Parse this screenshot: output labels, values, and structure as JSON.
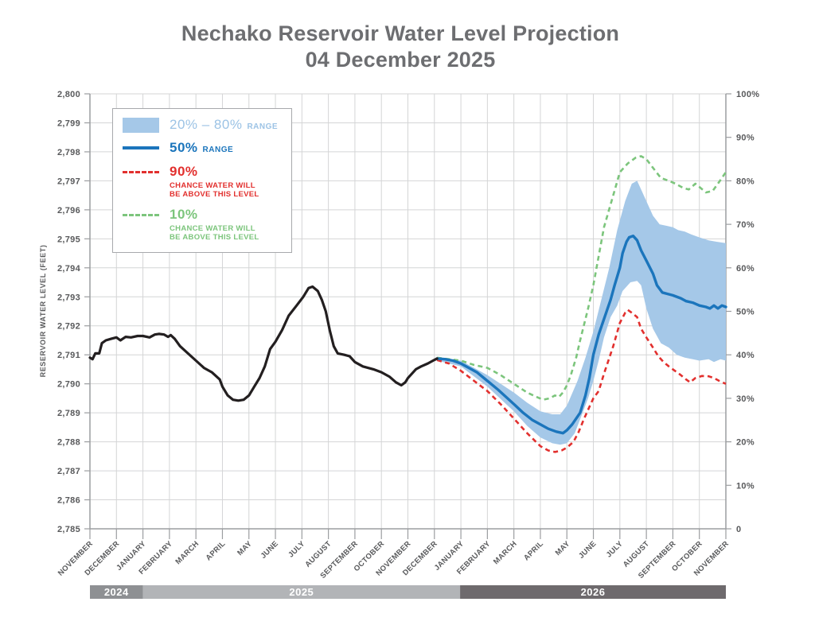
{
  "header": {
    "title_line1": "Nechako Reservoir Water Level Projection",
    "title_line2": "04 December 2025"
  },
  "legend": {
    "items": [
      {
        "key": "band-swatch",
        "label": "20% – 80%",
        "sub": "RANGE"
      },
      {
        "key": "median-line",
        "label": "50%",
        "sub": "RANGE"
      },
      {
        "key": "p90-dash",
        "label": "90%",
        "desc1": "CHANCE WATER WILL",
        "desc2": "BE ABOVE THIS LEVEL"
      },
      {
        "key": "p10-dash",
        "label": "10%",
        "desc1": "CHANCE WATER WILL",
        "desc2": "BE ABOVE THIS LEVEL"
      }
    ]
  },
  "chart_data": {
    "type": "line",
    "title": "Nechako Reservoir Water Level Projection",
    "subtitle": "04 December 2025",
    "grid": true,
    "y_left": {
      "label": "RESERVOIR WATER LEVEL (FEET)",
      "min": 2785,
      "max": 2800,
      "step": 1
    },
    "y_right": {
      "min": 0,
      "max": 100,
      "step": 10,
      "suffix": "%",
      "zero_label": "0"
    },
    "x_months": [
      "NOVEMBER",
      "DECEMBER",
      "JANUARY",
      "FEBRUARY",
      "MARCH",
      "APRIL",
      "MAY",
      "JUNE",
      "JULY",
      "AUGUST",
      "SEPTEMBER",
      "OCTOBER",
      "NOVEMBER",
      "DECEMBER",
      "JANUARY",
      "FEBRUARY",
      "MARCH",
      "APRIL",
      "MAY",
      "JUNE",
      "JULY",
      "AUGUST",
      "SEPTEMBER",
      "OCTOBER",
      "NOVEMBER"
    ],
    "year_bands": [
      {
        "label": "2024",
        "from": 0,
        "to": 2.0,
        "color": "#8e9093"
      },
      {
        "label": "2025",
        "from": 2.0,
        "to": 13.97,
        "color": "#b2b4b7"
      },
      {
        "label": "2026",
        "from": 13.97,
        "to": 24.0,
        "color": "#6e6a6d"
      }
    ],
    "colors": {
      "historical": "#231f20",
      "median": "#1b75bc",
      "band": "#a5c8e8",
      "p90": "#e2302e",
      "p10": "#7cc57c",
      "grid": "#d4d5d6",
      "axis": "#9b9da0",
      "tick_text": "#58595b",
      "title_text": "#6d6e71"
    },
    "series": {
      "historical": [
        [
          0,
          2790.9
        ],
        [
          0.1,
          2790.85
        ],
        [
          0.2,
          2791.05
        ],
        [
          0.35,
          2791.05
        ],
        [
          0.45,
          2791.4
        ],
        [
          0.6,
          2791.5
        ],
        [
          0.8,
          2791.55
        ],
        [
          1.0,
          2791.6
        ],
        [
          1.15,
          2791.5
        ],
        [
          1.35,
          2791.62
        ],
        [
          1.55,
          2791.6
        ],
        [
          1.8,
          2791.65
        ],
        [
          2.0,
          2791.65
        ],
        [
          2.25,
          2791.6
        ],
        [
          2.45,
          2791.7
        ],
        [
          2.6,
          2791.72
        ],
        [
          2.8,
          2791.7
        ],
        [
          2.95,
          2791.62
        ],
        [
          3.05,
          2791.68
        ],
        [
          3.2,
          2791.55
        ],
        [
          3.4,
          2791.3
        ],
        [
          3.7,
          2791.05
        ],
        [
          4.0,
          2790.8
        ],
        [
          4.3,
          2790.55
        ],
        [
          4.6,
          2790.4
        ],
        [
          4.9,
          2790.15
        ],
        [
          5.0,
          2789.9
        ],
        [
          5.2,
          2789.6
        ],
        [
          5.4,
          2789.45
        ],
        [
          5.6,
          2789.42
        ],
        [
          5.8,
          2789.45
        ],
        [
          6.0,
          2789.6
        ],
        [
          6.2,
          2789.9
        ],
        [
          6.4,
          2790.2
        ],
        [
          6.6,
          2790.6
        ],
        [
          6.8,
          2791.2
        ],
        [
          7.0,
          2791.45
        ],
        [
          7.25,
          2791.85
        ],
        [
          7.5,
          2792.35
        ],
        [
          7.8,
          2792.7
        ],
        [
          8.05,
          2793.0
        ],
        [
          8.25,
          2793.3
        ],
        [
          8.4,
          2793.35
        ],
        [
          8.6,
          2793.2
        ],
        [
          8.75,
          2792.9
        ],
        [
          8.9,
          2792.5
        ],
        [
          9.05,
          2791.85
        ],
        [
          9.2,
          2791.3
        ],
        [
          9.35,
          2791.05
        ],
        [
          9.6,
          2791.0
        ],
        [
          9.8,
          2790.95
        ],
        [
          10.0,
          2790.75
        ],
        [
          10.3,
          2790.6
        ],
        [
          10.7,
          2790.5
        ],
        [
          11.0,
          2790.4
        ],
        [
          11.3,
          2790.25
        ],
        [
          11.55,
          2790.05
        ],
        [
          11.75,
          2789.95
        ],
        [
          11.9,
          2790.05
        ],
        [
          12.0,
          2790.2
        ],
        [
          12.15,
          2790.35
        ],
        [
          12.3,
          2790.5
        ],
        [
          12.5,
          2790.6
        ],
        [
          12.75,
          2790.7
        ],
        [
          12.95,
          2790.8
        ],
        [
          13.1,
          2790.87
        ]
      ],
      "median": [
        [
          13.1,
          2790.87
        ],
        [
          13.4,
          2790.85
        ],
        [
          13.7,
          2790.8
        ],
        [
          14.0,
          2790.7
        ],
        [
          14.3,
          2790.55
        ],
        [
          14.6,
          2790.4
        ],
        [
          15.0,
          2790.1
        ],
        [
          15.4,
          2789.8
        ],
        [
          15.7,
          2789.55
        ],
        [
          16.0,
          2789.3
        ],
        [
          16.35,
          2789.0
        ],
        [
          16.7,
          2788.75
        ],
        [
          17.0,
          2788.6
        ],
        [
          17.3,
          2788.45
        ],
        [
          17.6,
          2788.35
        ],
        [
          17.85,
          2788.3
        ],
        [
          18.0,
          2788.4
        ],
        [
          18.2,
          2788.6
        ],
        [
          18.5,
          2789.0
        ],
        [
          18.7,
          2789.6
        ],
        [
          18.85,
          2790.2
        ],
        [
          19.0,
          2791.0
        ],
        [
          19.2,
          2791.7
        ],
        [
          19.35,
          2792.1
        ],
        [
          19.5,
          2792.5
        ],
        [
          19.65,
          2792.9
        ],
        [
          19.8,
          2793.4
        ],
        [
          20.0,
          2794.0
        ],
        [
          20.1,
          2794.5
        ],
        [
          20.25,
          2794.9
        ],
        [
          20.35,
          2795.05
        ],
        [
          20.5,
          2795.1
        ],
        [
          20.65,
          2794.95
        ],
        [
          20.8,
          2794.6
        ],
        [
          21.0,
          2794.25
        ],
        [
          21.25,
          2793.8
        ],
        [
          21.4,
          2793.4
        ],
        [
          21.6,
          2793.15
        ],
        [
          21.8,
          2793.1
        ],
        [
          22.0,
          2793.05
        ],
        [
          22.3,
          2792.95
        ],
        [
          22.5,
          2792.85
        ],
        [
          22.75,
          2792.8
        ],
        [
          23.0,
          2792.7
        ],
        [
          23.25,
          2792.65
        ],
        [
          23.4,
          2792.6
        ],
        [
          23.55,
          2792.7
        ],
        [
          23.7,
          2792.6
        ],
        [
          23.85,
          2792.7
        ],
        [
          24.0,
          2792.65
        ]
      ],
      "band_top": [
        [
          13.1,
          2790.9
        ],
        [
          14.0,
          2790.8
        ],
        [
          15.0,
          2790.3
        ],
        [
          16.0,
          2789.7
        ],
        [
          16.5,
          2789.35
        ],
        [
          17.0,
          2789.05
        ],
        [
          17.45,
          2788.95
        ],
        [
          17.75,
          2788.95
        ],
        [
          18.0,
          2789.25
        ],
        [
          18.4,
          2790.1
        ],
        [
          18.7,
          2790.9
        ],
        [
          19.0,
          2791.8
        ],
        [
          19.3,
          2792.9
        ],
        [
          19.6,
          2794.0
        ],
        [
          19.9,
          2795.3
        ],
        [
          20.2,
          2796.3
        ],
        [
          20.45,
          2796.9
        ],
        [
          20.65,
          2797.0
        ],
        [
          20.8,
          2796.7
        ],
        [
          21.0,
          2796.3
        ],
        [
          21.25,
          2795.8
        ],
        [
          21.5,
          2795.5
        ],
        [
          21.75,
          2795.45
        ],
        [
          22.0,
          2795.4
        ],
        [
          22.2,
          2795.3
        ],
        [
          22.45,
          2795.25
        ],
        [
          22.7,
          2795.15
        ],
        [
          23.0,
          2795.05
        ],
        [
          23.35,
          2794.95
        ],
        [
          23.65,
          2794.9
        ],
        [
          24.0,
          2794.85
        ]
      ],
      "band_bottom": [
        [
          13.1,
          2790.8
        ],
        [
          14.0,
          2790.6
        ],
        [
          15.0,
          2789.9
        ],
        [
          16.0,
          2789.05
        ],
        [
          16.5,
          2788.55
        ],
        [
          17.0,
          2788.15
        ],
        [
          17.45,
          2787.95
        ],
        [
          17.75,
          2787.9
        ],
        [
          18.0,
          2787.95
        ],
        [
          18.3,
          2788.3
        ],
        [
          18.55,
          2788.9
        ],
        [
          18.8,
          2789.5
        ],
        [
          19.0,
          2790.1
        ],
        [
          19.2,
          2790.8
        ],
        [
          19.4,
          2791.6
        ],
        [
          19.65,
          2792.3
        ],
        [
          19.9,
          2792.7
        ],
        [
          20.1,
          2793.2
        ],
        [
          20.4,
          2793.5
        ],
        [
          20.65,
          2793.55
        ],
        [
          20.8,
          2793.4
        ],
        [
          21.0,
          2792.6
        ],
        [
          21.25,
          2791.9
        ],
        [
          21.55,
          2791.4
        ],
        [
          21.85,
          2791.25
        ],
        [
          22.15,
          2791.0
        ],
        [
          22.45,
          2790.9
        ],
        [
          22.75,
          2790.85
        ],
        [
          23.0,
          2790.8
        ],
        [
          23.35,
          2790.85
        ],
        [
          23.55,
          2790.75
        ],
        [
          23.8,
          2790.85
        ],
        [
          24.0,
          2790.8
        ]
      ],
      "p90": [
        [
          13.1,
          2790.82
        ],
        [
          13.55,
          2790.7
        ],
        [
          14.0,
          2790.45
        ],
        [
          14.5,
          2790.1
        ],
        [
          15.0,
          2789.75
        ],
        [
          15.5,
          2789.3
        ],
        [
          16.0,
          2788.8
        ],
        [
          16.5,
          2788.3
        ],
        [
          17.0,
          2787.85
        ],
        [
          17.3,
          2787.7
        ],
        [
          17.55,
          2787.65
        ],
        [
          17.8,
          2787.7
        ],
        [
          18.0,
          2787.8
        ],
        [
          18.25,
          2788.0
        ],
        [
          18.45,
          2788.35
        ],
        [
          18.65,
          2788.8
        ],
        [
          18.85,
          2789.2
        ],
        [
          19.0,
          2789.5
        ],
        [
          19.2,
          2789.75
        ],
        [
          19.4,
          2790.35
        ],
        [
          19.75,
          2791.3
        ],
        [
          20.0,
          2792.1
        ],
        [
          20.2,
          2792.45
        ],
        [
          20.3,
          2792.55
        ],
        [
          20.45,
          2792.45
        ],
        [
          20.65,
          2792.3
        ],
        [
          20.8,
          2791.9
        ],
        [
          21.0,
          2791.6
        ],
        [
          21.25,
          2791.25
        ],
        [
          21.45,
          2790.95
        ],
        [
          21.65,
          2790.75
        ],
        [
          21.85,
          2790.6
        ],
        [
          22.0,
          2790.5
        ],
        [
          22.3,
          2790.3
        ],
        [
          22.5,
          2790.15
        ],
        [
          22.65,
          2790.05
        ],
        [
          22.85,
          2790.2
        ],
        [
          23.1,
          2790.27
        ],
        [
          23.35,
          2790.26
        ],
        [
          23.55,
          2790.2
        ],
        [
          23.75,
          2790.1
        ],
        [
          24.0,
          2790.0
        ]
      ],
      "p10": [
        [
          13.1,
          2790.9
        ],
        [
          13.55,
          2790.85
        ],
        [
          14.0,
          2790.8
        ],
        [
          14.5,
          2790.65
        ],
        [
          15.0,
          2790.55
        ],
        [
          15.5,
          2790.3
        ],
        [
          16.0,
          2790.0
        ],
        [
          16.5,
          2789.7
        ],
        [
          16.85,
          2789.55
        ],
        [
          17.1,
          2789.45
        ],
        [
          17.35,
          2789.5
        ],
        [
          17.55,
          2789.6
        ],
        [
          17.7,
          2789.55
        ],
        [
          17.85,
          2789.7
        ],
        [
          18.0,
          2789.95
        ],
        [
          18.15,
          2790.3
        ],
        [
          18.35,
          2790.9
        ],
        [
          18.5,
          2791.5
        ],
        [
          18.8,
          2792.6
        ],
        [
          19.0,
          2793.4
        ],
        [
          19.2,
          2794.4
        ],
        [
          19.4,
          2795.4
        ],
        [
          19.75,
          2796.5
        ],
        [
          20.0,
          2797.3
        ],
        [
          20.3,
          2797.6
        ],
        [
          20.6,
          2797.8
        ],
        [
          20.8,
          2797.85
        ],
        [
          21.0,
          2797.75
        ],
        [
          21.25,
          2797.45
        ],
        [
          21.55,
          2797.1
        ],
        [
          21.85,
          2797.0
        ],
        [
          22.1,
          2796.9
        ],
        [
          22.4,
          2796.75
        ],
        [
          22.6,
          2796.7
        ],
        [
          22.85,
          2796.9
        ],
        [
          23.05,
          2796.75
        ],
        [
          23.25,
          2796.6
        ],
        [
          23.5,
          2796.65
        ],
        [
          23.7,
          2796.9
        ],
        [
          23.85,
          2797.1
        ],
        [
          24.0,
          2797.3
        ]
      ]
    }
  }
}
